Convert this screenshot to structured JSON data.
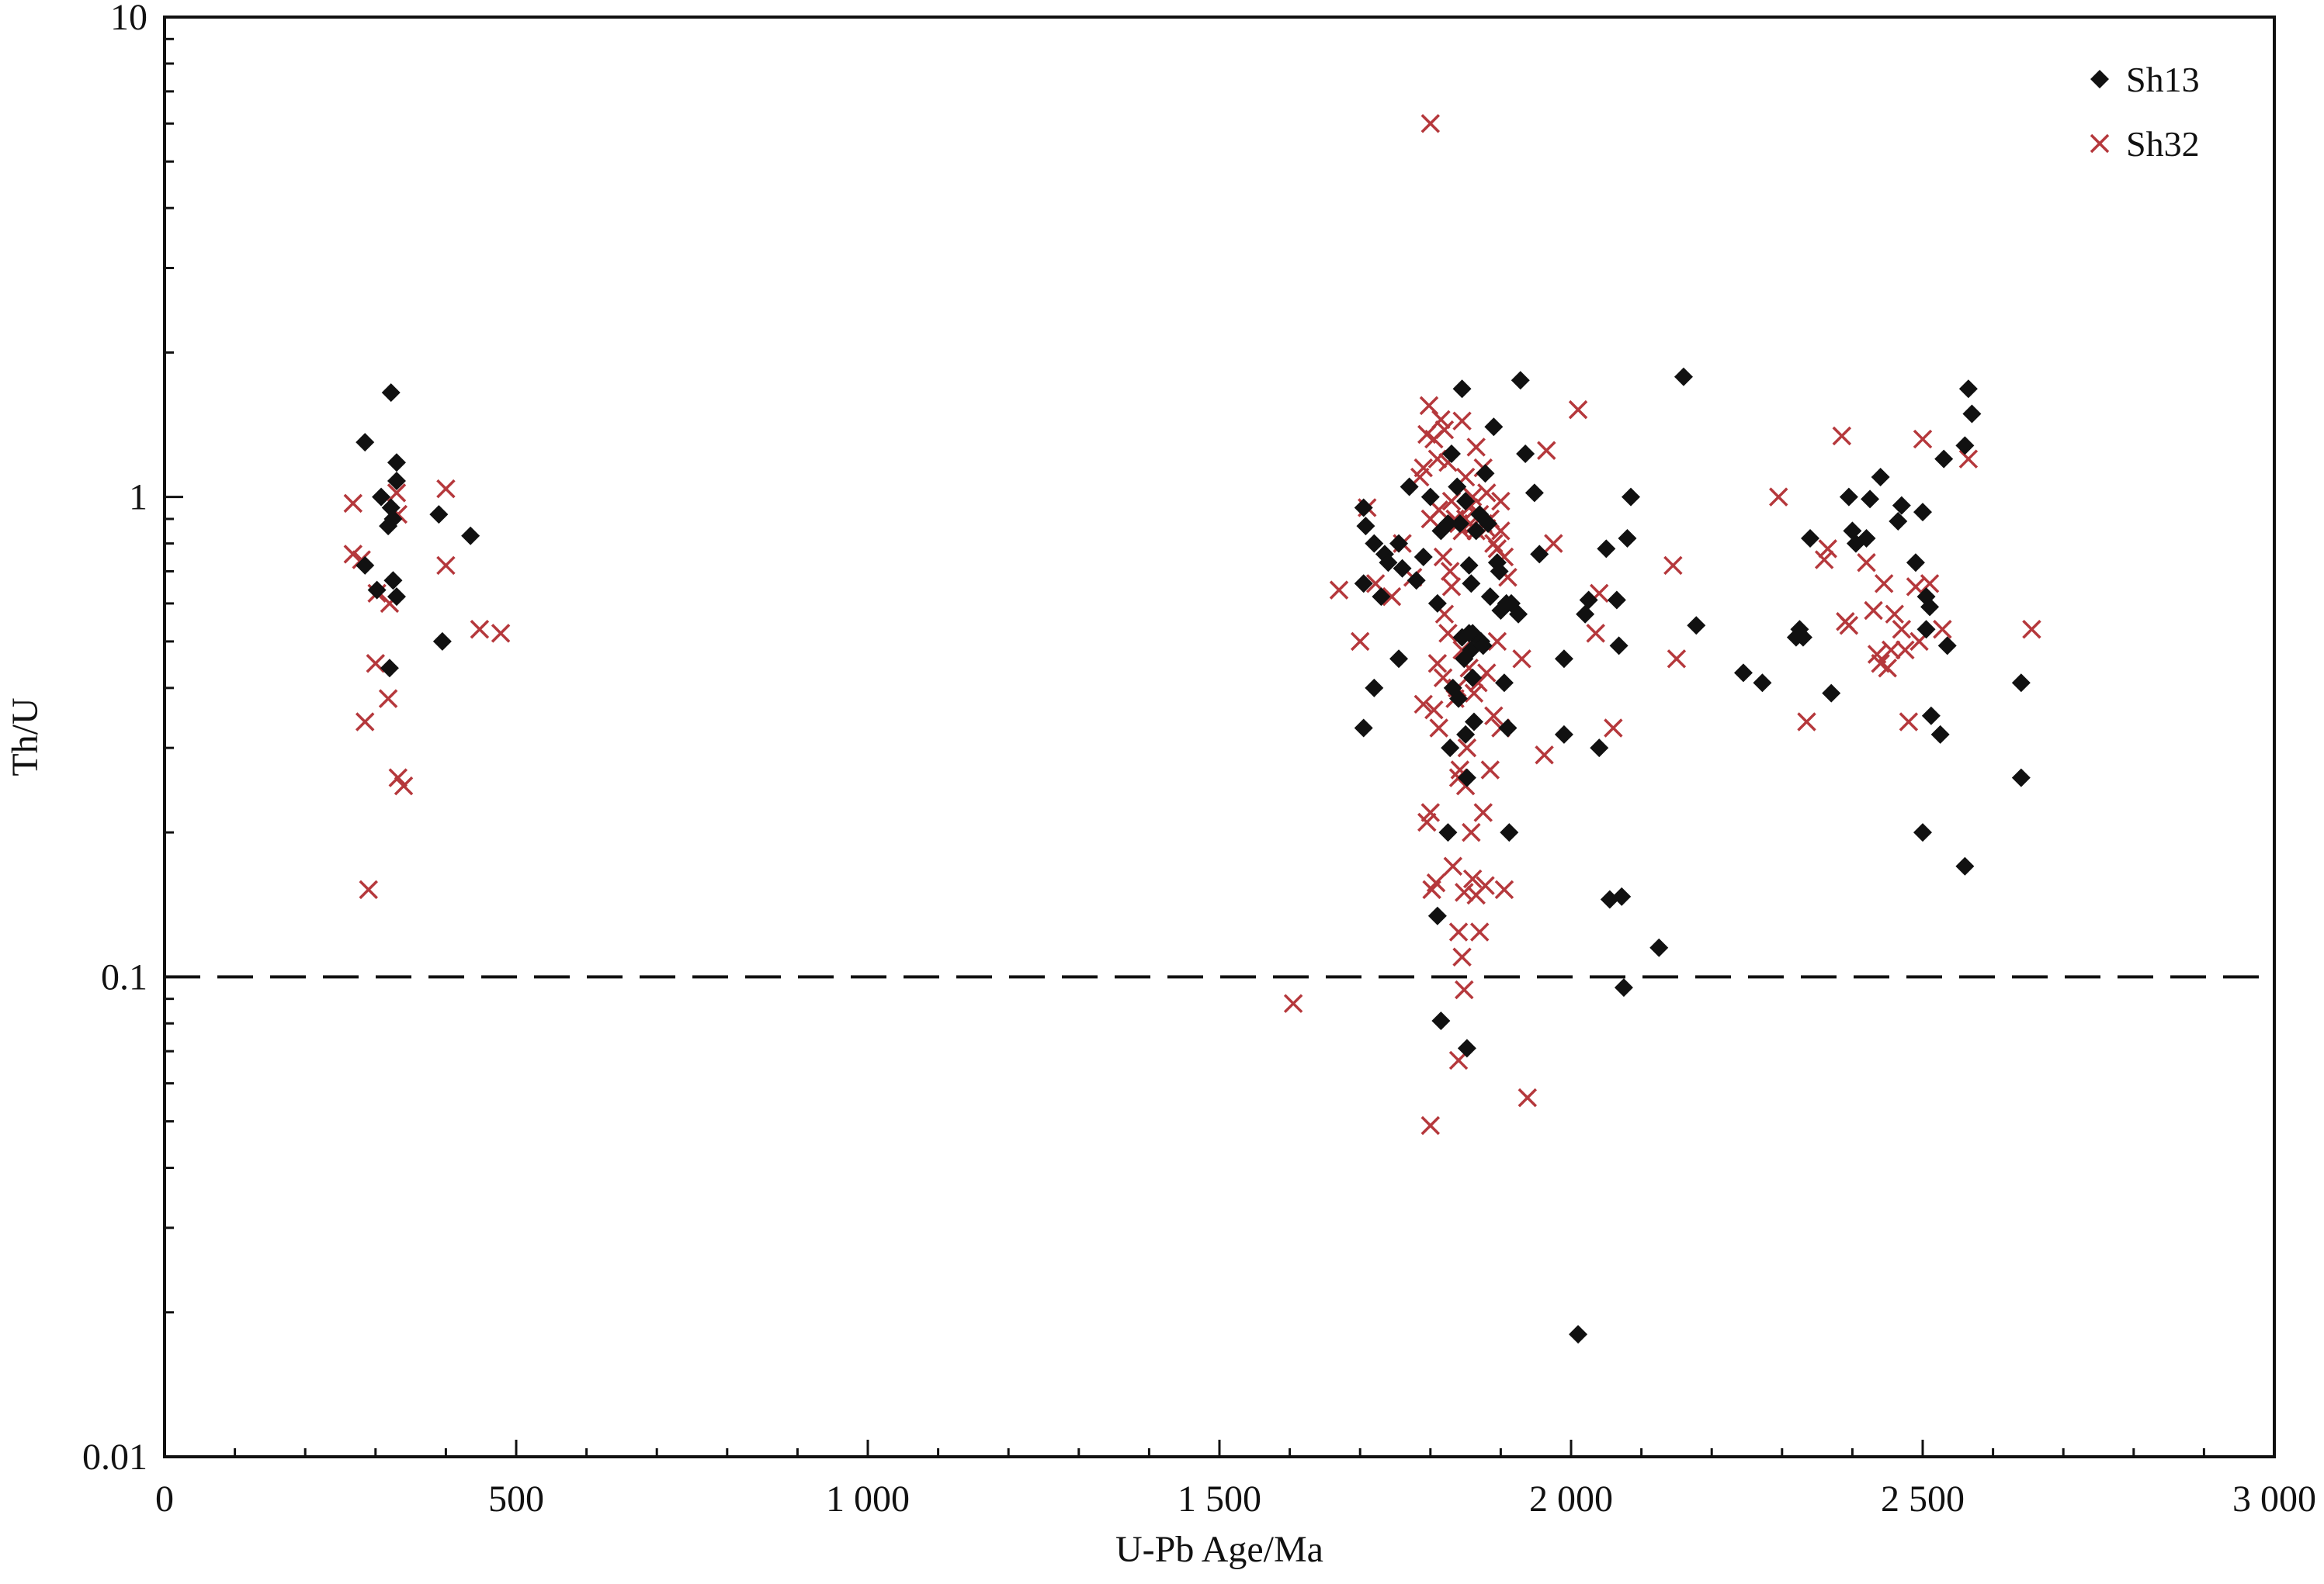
{
  "colors": {
    "axis": "#111111",
    "series_sh13": "#111111",
    "series_sh32": "#b5383c",
    "reference_line": "#111111"
  },
  "chart_data": {
    "type": "scatter",
    "title": "",
    "xlabel": "U-Pb Age/Ma",
    "ylabel": "Th/U",
    "xlim": [
      0,
      3000
    ],
    "ylim": [
      0.01,
      10
    ],
    "yscale": "log",
    "grid": false,
    "legend_position": "top-right",
    "x_ticks": [
      {
        "value": 0,
        "label": "0"
      },
      {
        "value": 500,
        "label": "500"
      },
      {
        "value": 1000,
        "label": "1 000"
      },
      {
        "value": 1500,
        "label": "1 500"
      },
      {
        "value": 2000,
        "label": "2 000"
      },
      {
        "value": 2500,
        "label": "2 500"
      },
      {
        "value": 3000,
        "label": "3 000"
      }
    ],
    "y_ticks": [
      {
        "value": 0.01,
        "label": "0.01"
      },
      {
        "value": 0.1,
        "label": "0.1"
      },
      {
        "value": 1,
        "label": "1"
      },
      {
        "value": 10,
        "label": "10"
      }
    ],
    "reference_lines": [
      {
        "axis": "y",
        "value": 0.1,
        "style": "dashed"
      }
    ],
    "series": [
      {
        "name": "Sh13",
        "marker": "diamond",
        "points": [
          [
            322,
            1.65
          ],
          [
            285,
            1.3
          ],
          [
            330,
            1.18
          ],
          [
            330,
            1.08
          ],
          [
            308,
            1.0
          ],
          [
            322,
            0.95
          ],
          [
            325,
            0.9
          ],
          [
            318,
            0.87
          ],
          [
            285,
            0.72
          ],
          [
            302,
            0.64
          ],
          [
            325,
            0.67
          ],
          [
            330,
            0.62
          ],
          [
            320,
            0.44
          ],
          [
            390,
            0.92
          ],
          [
            435,
            0.83
          ],
          [
            395,
            0.5
          ],
          [
            1705,
            0.95
          ],
          [
            1708,
            0.87
          ],
          [
            1720,
            0.8
          ],
          [
            1735,
            0.76
          ],
          [
            1740,
            0.73
          ],
          [
            1755,
            0.8
          ],
          [
            1760,
            0.71
          ],
          [
            1770,
            1.05
          ],
          [
            1780,
            0.67
          ],
          [
            1790,
            0.75
          ],
          [
            1800,
            1.0
          ],
          [
            1810,
            0.6
          ],
          [
            1730,
            0.62
          ],
          [
            1705,
            0.66
          ],
          [
            1720,
            0.4
          ],
          [
            1705,
            0.33
          ],
          [
            1755,
            0.46
          ],
          [
            1815,
            0.85
          ],
          [
            1825,
            0.88
          ],
          [
            1830,
            1.23
          ],
          [
            1838,
            1.05
          ],
          [
            1842,
            0.88
          ],
          [
            1845,
            1.68
          ],
          [
            1850,
            0.98
          ],
          [
            1855,
            0.72
          ],
          [
            1858,
            0.66
          ],
          [
            1860,
            0.52
          ],
          [
            1862,
            0.34
          ],
          [
            1865,
            0.85
          ],
          [
            1870,
            0.92
          ],
          [
            1872,
            0.5
          ],
          [
            1878,
            1.12
          ],
          [
            1882,
            0.88
          ],
          [
            1885,
            0.62
          ],
          [
            1890,
            1.4
          ],
          [
            1895,
            0.73
          ],
          [
            1898,
            0.7
          ],
          [
            1900,
            0.58
          ],
          [
            1905,
            0.41
          ],
          [
            1908,
            0.6
          ],
          [
            1910,
            0.33
          ],
          [
            1912,
            0.2
          ],
          [
            1915,
            0.6
          ],
          [
            1925,
            0.57
          ],
          [
            1928,
            1.75
          ],
          [
            1935,
            1.23
          ],
          [
            1948,
            1.02
          ],
          [
            1955,
            0.76
          ],
          [
            1825,
            0.2
          ],
          [
            1832,
            0.4
          ],
          [
            1840,
            0.38
          ],
          [
            1845,
            0.51
          ],
          [
            1848,
            0.46
          ],
          [
            1850,
            0.32
          ],
          [
            1852,
            0.26
          ],
          [
            1855,
            0.52
          ],
          [
            1858,
            0.48
          ],
          [
            1875,
            0.49
          ],
          [
            1860,
            0.42
          ],
          [
            1810,
            0.134
          ],
          [
            1815,
            0.081
          ],
          [
            1852,
            0.071
          ],
          [
            1828,
            0.3
          ],
          [
            1990,
            0.46
          ],
          [
            1990,
            0.32
          ],
          [
            2020,
            0.57
          ],
          [
            2025,
            0.61
          ],
          [
            2040,
            0.3
          ],
          [
            2050,
            0.78
          ],
          [
            2055,
            0.145
          ],
          [
            2065,
            0.61
          ],
          [
            2068,
            0.49
          ],
          [
            2072,
            0.147
          ],
          [
            2075,
            0.095
          ],
          [
            2080,
            0.82
          ],
          [
            2085,
            1.0
          ],
          [
            2125,
            0.115
          ],
          [
            2160,
            1.78
          ],
          [
            2178,
            0.54
          ],
          [
            2010,
            0.018
          ],
          [
            2245,
            0.43
          ],
          [
            2272,
            0.41
          ],
          [
            2320,
            0.51
          ],
          [
            2325,
            0.53
          ],
          [
            2330,
            0.51
          ],
          [
            2340,
            0.82
          ],
          [
            2370,
            0.39
          ],
          [
            2395,
            1.0
          ],
          [
            2400,
            0.85
          ],
          [
            2405,
            0.8
          ],
          [
            2420,
            0.82
          ],
          [
            2425,
            0.99
          ],
          [
            2440,
            1.1
          ],
          [
            2465,
            0.89
          ],
          [
            2470,
            0.96
          ],
          [
            2490,
            0.73
          ],
          [
            2500,
            0.93
          ],
          [
            2505,
            0.62
          ],
          [
            2510,
            0.59
          ],
          [
            2505,
            0.53
          ],
          [
            2512,
            0.35
          ],
          [
            2525,
            0.32
          ],
          [
            2530,
            1.2
          ],
          [
            2535,
            0.49
          ],
          [
            2500,
            0.2
          ],
          [
            2560,
            1.28
          ],
          [
            2565,
            1.68
          ],
          [
            2570,
            1.49
          ],
          [
            2560,
            0.17
          ],
          [
            2640,
            0.41
          ],
          [
            2640,
            0.26
          ]
        ]
      },
      {
        "name": "Sh32",
        "marker": "x",
        "points": [
          [
            268,
            0.97
          ],
          [
            268,
            0.76
          ],
          [
            280,
            0.74
          ],
          [
            285,
            0.34
          ],
          [
            290,
            0.152
          ],
          [
            300,
            0.45
          ],
          [
            302,
            0.63
          ],
          [
            318,
            0.38
          ],
          [
            320,
            0.6
          ],
          [
            330,
            1.02
          ],
          [
            332,
            0.92
          ],
          [
            332,
            0.26
          ],
          [
            340,
            0.25
          ],
          [
            400,
            1.04
          ],
          [
            400,
            0.72
          ],
          [
            448,
            0.53
          ],
          [
            478,
            0.52
          ],
          [
            1605,
            0.088
          ],
          [
            1670,
            0.64
          ],
          [
            1700,
            0.5
          ],
          [
            1710,
            0.95
          ],
          [
            1722,
            0.66
          ],
          [
            1745,
            0.62
          ],
          [
            1760,
            0.8
          ],
          [
            1775,
            0.68
          ],
          [
            1785,
            1.1
          ],
          [
            1790,
            1.15
          ],
          [
            1795,
            1.35
          ],
          [
            1798,
            1.55
          ],
          [
            1800,
            0.9
          ],
          [
            1805,
            1.32
          ],
          [
            1810,
            1.2
          ],
          [
            1812,
            0.94
          ],
          [
            1815,
            1.45
          ],
          [
            1818,
            0.75
          ],
          [
            1820,
            1.38
          ],
          [
            1825,
            1.18
          ],
          [
            1830,
            0.98
          ],
          [
            1835,
            0.9
          ],
          [
            1840,
            0.88
          ],
          [
            1845,
            0.85
          ],
          [
            1850,
            0.9
          ],
          [
            1855,
            0.95
          ],
          [
            1860,
            0.87
          ],
          [
            1865,
            0.85
          ],
          [
            1870,
            0.92
          ],
          [
            1875,
            0.88
          ],
          [
            1880,
            0.86
          ],
          [
            1885,
            0.9
          ],
          [
            1890,
            0.8
          ],
          [
            1895,
            0.78
          ],
          [
            1900,
            0.85
          ],
          [
            1905,
            0.75
          ],
          [
            1910,
            0.68
          ],
          [
            1845,
            1.44
          ],
          [
            1850,
            1.1
          ],
          [
            1860,
            1.0
          ],
          [
            1865,
            1.27
          ],
          [
            1875,
            1.15
          ],
          [
            1880,
            1.02
          ],
          [
            1900,
            0.98
          ],
          [
            1790,
            0.37
          ],
          [
            1795,
            0.21
          ],
          [
            1800,
            0.22
          ],
          [
            1802,
            0.152
          ],
          [
            1805,
            0.36
          ],
          [
            1808,
            0.157
          ],
          [
            1810,
            0.45
          ],
          [
            1812,
            0.33
          ],
          [
            1818,
            0.42
          ],
          [
            1820,
            0.57
          ],
          [
            1825,
            0.52
          ],
          [
            1828,
            0.7
          ],
          [
            1830,
            0.65
          ],
          [
            1832,
            0.17
          ],
          [
            1835,
            0.38
          ],
          [
            1838,
            0.4
          ],
          [
            1840,
            0.26
          ],
          [
            1842,
            0.27
          ],
          [
            1845,
            0.48
          ],
          [
            1848,
            0.15
          ],
          [
            1850,
            0.25
          ],
          [
            1852,
            0.3
          ],
          [
            1855,
            0.44
          ],
          [
            1858,
            0.2
          ],
          [
            1860,
            0.16
          ],
          [
            1862,
            0.39
          ],
          [
            1865,
            0.148
          ],
          [
            1868,
            0.41
          ],
          [
            1870,
            0.124
          ],
          [
            1875,
            0.22
          ],
          [
            1878,
            0.155
          ],
          [
            1880,
            0.43
          ],
          [
            1885,
            0.27
          ],
          [
            1890,
            0.35
          ],
          [
            1895,
            0.5
          ],
          [
            1900,
            0.33
          ],
          [
            1905,
            0.152
          ],
          [
            1840,
            0.124
          ],
          [
            1845,
            0.11
          ],
          [
            1848,
            0.094
          ],
          [
            1840,
            0.067
          ],
          [
            1800,
            0.049
          ],
          [
            1800,
            6.0
          ],
          [
            1930,
            0.46
          ],
          [
            1938,
            0.056
          ],
          [
            1962,
            0.29
          ],
          [
            1965,
            1.25
          ],
          [
            1975,
            0.8
          ],
          [
            2010,
            1.52
          ],
          [
            2035,
            0.52
          ],
          [
            2040,
            0.63
          ],
          [
            2060,
            0.33
          ],
          [
            2145,
            0.72
          ],
          [
            2150,
            0.46
          ],
          [
            2295,
            1.0
          ],
          [
            2335,
            0.34
          ],
          [
            2360,
            0.74
          ],
          [
            2365,
            0.78
          ],
          [
            2385,
            1.34
          ],
          [
            2390,
            0.55
          ],
          [
            2395,
            0.54
          ],
          [
            2420,
            0.73
          ],
          [
            2430,
            0.58
          ],
          [
            2435,
            0.47
          ],
          [
            2440,
            0.45
          ],
          [
            2445,
            0.66
          ],
          [
            2450,
            0.44
          ],
          [
            2455,
            0.48
          ],
          [
            2460,
            0.57
          ],
          [
            2470,
            0.53
          ],
          [
            2475,
            0.48
          ],
          [
            2480,
            0.34
          ],
          [
            2490,
            0.65
          ],
          [
            2495,
            0.5
          ],
          [
            2500,
            1.32
          ],
          [
            2510,
            0.66
          ],
          [
            2528,
            0.53
          ],
          [
            2565,
            1.2
          ],
          [
            2655,
            0.53
          ]
        ]
      }
    ]
  }
}
